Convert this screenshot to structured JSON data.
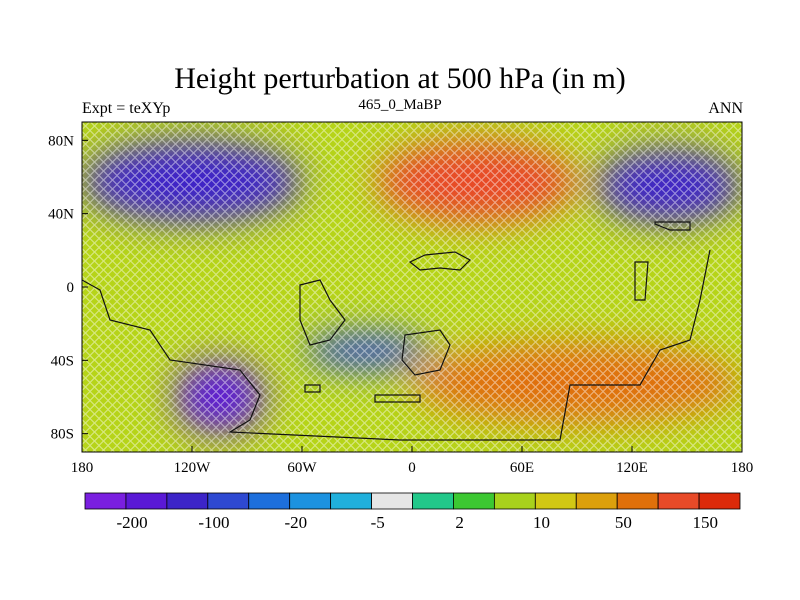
{
  "title": "Height perturbation at 500 hPa (in m)",
  "left_string": "Expt = teXYp",
  "center_string": "465_0_MaBP",
  "right_string": "ANN",
  "map": {
    "projection": "cylindrical equidistant",
    "lon_range": [
      -180,
      180
    ],
    "lat_range": [
      -90,
      90
    ],
    "x_ticks": [
      {
        "value": -180,
        "label": "180"
      },
      {
        "value": -120,
        "label": "120W"
      },
      {
        "value": -60,
        "label": "60W"
      },
      {
        "value": 0,
        "label": "0"
      },
      {
        "value": 60,
        "label": "60E"
      },
      {
        "value": 120,
        "label": "120E"
      },
      {
        "value": 180,
        "label": "180"
      }
    ],
    "y_ticks": [
      {
        "value": 80,
        "label": "80N"
      },
      {
        "value": 40,
        "label": "40N"
      },
      {
        "value": 0,
        "label": "0"
      },
      {
        "value": -40,
        "label": "40S"
      },
      {
        "value": -80,
        "label": "80S"
      }
    ]
  },
  "colorbar": {
    "colors": [
      "#7a1fe0",
      "#5a19d6",
      "#3c24c8",
      "#2e49d2",
      "#1d6fdc",
      "#1c92e0",
      "#20b0dc",
      "#e6e6e6",
      "#22c88a",
      "#3cc832",
      "#a8d21c",
      "#d2c814",
      "#dca00c",
      "#e0700a",
      "#e84a28",
      "#dc2a0a"
    ],
    "labels": [
      "-200",
      "-100",
      "-20",
      "-5",
      "2",
      "10",
      "50",
      "150"
    ]
  },
  "field_regions": [
    {
      "type": "negative-strong",
      "lon": [
        -180,
        -60
      ],
      "lat": [
        35,
        80
      ],
      "value": -100
    },
    {
      "type": "negative-strong",
      "lon": [
        -130,
        -80
      ],
      "lat": [
        -80,
        -40
      ],
      "value": -150
    },
    {
      "type": "negative",
      "lon": [
        -60,
        10
      ],
      "lat": [
        -45,
        -25
      ],
      "value": -50
    },
    {
      "type": "negative-strong",
      "lon": [
        100,
        180
      ],
      "lat": [
        35,
        75
      ],
      "value": -100
    },
    {
      "type": "positive-strong",
      "lon": [
        -20,
        90
      ],
      "lat": [
        35,
        80
      ],
      "value": 150
    },
    {
      "type": "positive",
      "lon": [
        0,
        180
      ],
      "lat": [
        -75,
        -30
      ],
      "value": 80
    }
  ]
}
